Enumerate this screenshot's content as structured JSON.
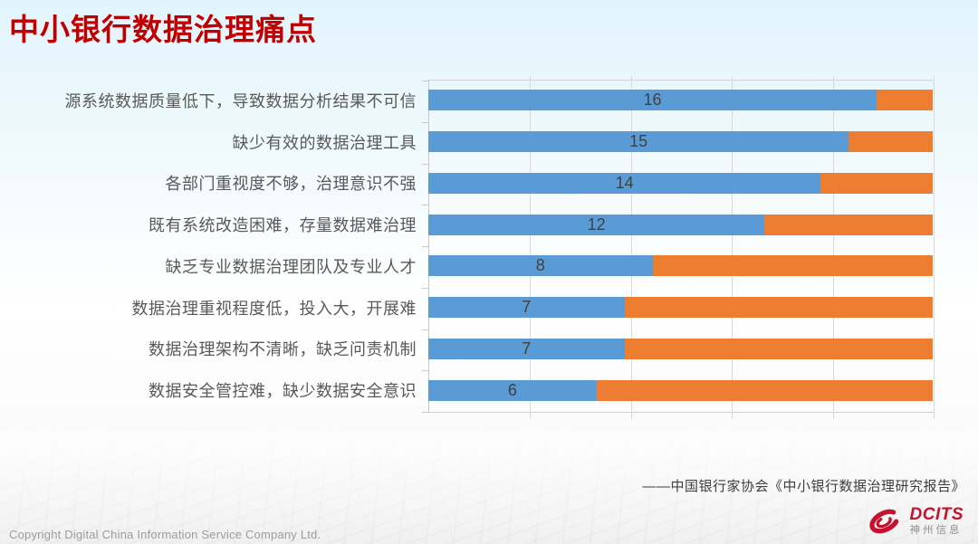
{
  "slide": {
    "title": "中小银行数据治理痛点",
    "citation": "——中国银行家协会《中小银行数据治理研究报告》",
    "footer": {
      "copyright": "Copyright  Digital China Information Service Company Ltd.",
      "logo_wordmark": "DCITS",
      "logo_subtext": "神州信息",
      "logo_icon": "dcits-swirl-icon"
    }
  },
  "colors": {
    "title": "#C00000",
    "bar_primary": "#5B9BD5",
    "bar_secondary": "#ED7D31",
    "gridline": "#D9D9D9",
    "category_label": "#595959",
    "data_label": "#404040",
    "background_top": "#E2F4FB",
    "logo_red": "#C4122F"
  },
  "chart_data": {
    "type": "bar",
    "subtype": "stacked-horizontal-100pct",
    "title": "",
    "xlabel": "",
    "ylabel": "",
    "categories": [
      "源系统数据质量低下，导致数据分析结果不可信",
      "缺少有效的数据治理工具",
      "各部门重视度不够，治理意识不强",
      "既有系统改造困难，存量数据难治理",
      "缺乏专业数据治理团队及专业人才",
      "数据治理重视程度低，投入大，开展难",
      "数据治理架构不清晰，缺乏问责机制",
      "数据安全管控难，缺少数据安全意识"
    ],
    "series": [
      {
        "name": "blue-segment",
        "color": "#5B9BD5",
        "values": [
          16,
          15,
          14,
          12,
          8,
          7,
          7,
          6
        ]
      },
      {
        "name": "orange-segment",
        "color": "#ED7D31",
        "values": [
          2,
          3,
          4,
          6,
          10,
          11,
          11,
          12
        ]
      }
    ],
    "data_labels": [
      16,
      15,
      14,
      12,
      8,
      7,
      7,
      6
    ],
    "total": 18,
    "xlim": [
      0,
      18
    ],
    "gridline_step": 3.6,
    "grid": true,
    "legend": "none",
    "axis_tick_labels": "none"
  }
}
